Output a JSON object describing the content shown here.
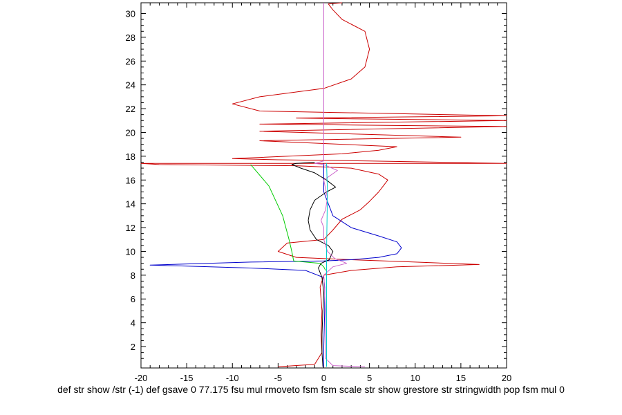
{
  "chart_data": {
    "type": "line",
    "title": "",
    "xlabel": "def str show /str (-1) def gsave 0 77.175 fsu mul rmoveto fsm fsm scale str show grestore str stringwidth pop fsm mul 0",
    "ylabel": "",
    "xlim": [
      -20,
      20
    ],
    "ylim": [
      0.2,
      30.9
    ],
    "xticks": [
      -20,
      -15,
      -10,
      -5,
      0,
      5,
      10,
      15,
      20
    ],
    "yticks": [
      2,
      4,
      6,
      8,
      10,
      12,
      14,
      16,
      18,
      20,
      22,
      24,
      26,
      28,
      30
    ],
    "grid": false,
    "legend": "none",
    "series": [
      {
        "name": "red",
        "color": "#cc0000",
        "points": [
          [
            -5,
            0.3
          ],
          [
            -1,
            0.5
          ],
          [
            -0.2,
            1.5
          ],
          [
            -0.3,
            3
          ],
          [
            -0.2,
            5
          ],
          [
            -0.4,
            7
          ],
          [
            0,
            8
          ],
          [
            3,
            8.4
          ],
          [
            8,
            8.7
          ],
          [
            17,
            8.9
          ],
          [
            10,
            9.1
          ],
          [
            3,
            9.3
          ],
          [
            -3,
            9.5
          ],
          [
            -5,
            10
          ],
          [
            -4,
            10.7
          ],
          [
            0,
            11
          ],
          [
            1,
            11.8
          ],
          [
            2,
            12.7
          ],
          [
            4,
            13.5
          ],
          [
            5,
            14.2
          ],
          [
            6,
            15
          ],
          [
            6.5,
            15.5
          ],
          [
            7,
            16
          ],
          [
            6,
            16.5
          ],
          [
            3,
            17
          ],
          [
            -3,
            17.2
          ],
          [
            -18,
            17.3
          ],
          [
            -20,
            17.4
          ],
          [
            0,
            17.4
          ],
          [
            20,
            17.4
          ],
          [
            5,
            17.6
          ],
          [
            -5,
            17.7
          ],
          [
            -10,
            17.8
          ],
          [
            2,
            18.2
          ],
          [
            6,
            18.5
          ],
          [
            8,
            18.8
          ],
          [
            -7,
            19.3
          ],
          [
            15,
            19.6
          ],
          [
            -7,
            20.1
          ],
          [
            20,
            20.5
          ],
          [
            -7,
            20.7
          ],
          [
            20,
            21
          ],
          [
            -3,
            21.2
          ],
          [
            20,
            21.4
          ],
          [
            -7,
            21.8
          ],
          [
            -10,
            22.4
          ],
          [
            -7,
            23
          ],
          [
            0,
            23.7
          ],
          [
            3,
            24.5
          ],
          [
            4.5,
            25.5
          ],
          [
            5,
            27
          ],
          [
            4.5,
            28.5
          ],
          [
            2,
            29.5
          ],
          [
            1,
            30.3
          ],
          [
            0.5,
            30.8
          ],
          [
            2,
            30.9
          ]
        ]
      },
      {
        "name": "blue",
        "color": "#0000cc",
        "points": [
          [
            0,
            0.3
          ],
          [
            0,
            2
          ],
          [
            0.1,
            5
          ],
          [
            0.1,
            7
          ],
          [
            0,
            7.8
          ],
          [
            -2,
            8.4
          ],
          [
            -8,
            8.6
          ],
          [
            -19,
            8.85
          ],
          [
            -8,
            9.1
          ],
          [
            0,
            9.2
          ],
          [
            3,
            9.3
          ],
          [
            6,
            9.5
          ],
          [
            8,
            9.8
          ],
          [
            8.5,
            10.3
          ],
          [
            8,
            10.8
          ],
          [
            6,
            11.3
          ],
          [
            3,
            12
          ],
          [
            1,
            13
          ],
          [
            0.5,
            14
          ],
          [
            0,
            15
          ],
          [
            0,
            16
          ],
          [
            0,
            17
          ],
          [
            0,
            17.4
          ]
        ]
      },
      {
        "name": "black",
        "color": "#000000",
        "points": [
          [
            -0.1,
            0.3
          ],
          [
            -0.2,
            1.5
          ],
          [
            -0.2,
            3
          ],
          [
            -0.1,
            5
          ],
          [
            0,
            6.5
          ],
          [
            -0.2,
            7.8
          ],
          [
            -0.6,
            8.6
          ],
          [
            -0.3,
            9
          ],
          [
            0.6,
            9.3
          ],
          [
            1,
            10
          ],
          [
            0.5,
            10.5
          ],
          [
            -0.8,
            11
          ],
          [
            -1.5,
            11.8
          ],
          [
            -1.7,
            12.6
          ],
          [
            -1.5,
            13.5
          ],
          [
            -1,
            14.3
          ],
          [
            0.3,
            15
          ],
          [
            1.3,
            15.4
          ],
          [
            0.3,
            16
          ],
          [
            -1,
            16.6
          ],
          [
            -2.5,
            17
          ],
          [
            -3.5,
            17.3
          ],
          [
            -3,
            17.4
          ],
          [
            -1,
            17.5
          ]
        ]
      },
      {
        "name": "green",
        "color": "#00cc00",
        "points": [
          [
            -8,
            17.3
          ],
          [
            -6,
            15.5
          ],
          [
            -4.5,
            13
          ],
          [
            -3.8,
            11
          ],
          [
            -3.5,
            10
          ],
          [
            -3.3,
            9.2
          ],
          [
            -2,
            9.1
          ],
          [
            -0.4,
            9
          ],
          [
            0,
            8.7
          ],
          [
            0.2,
            8.4
          ]
        ]
      },
      {
        "name": "violet",
        "color": "#cc66cc",
        "points": [
          [
            4.5,
            0.3
          ],
          [
            1,
            0.4
          ],
          [
            0.2,
            1
          ],
          [
            0.2,
            5
          ],
          [
            0,
            8
          ],
          [
            1,
            8.7
          ],
          [
            2.5,
            9
          ],
          [
            1.2,
            9.4
          ],
          [
            0.4,
            10
          ],
          [
            0,
            11
          ],
          [
            0,
            12
          ],
          [
            -0.3,
            12.6
          ],
          [
            0.2,
            13.5
          ],
          [
            0.4,
            14.5
          ],
          [
            0,
            16
          ],
          [
            1.5,
            16.8
          ],
          [
            0,
            17.3
          ],
          [
            -1,
            17.4
          ],
          [
            0,
            17.6
          ],
          [
            0,
            30.9
          ]
        ]
      },
      {
        "name": "cyan",
        "color": "#00cccc",
        "points": [
          [
            0.3,
            0.3
          ],
          [
            0.3,
            5
          ],
          [
            0.3,
            10
          ],
          [
            0.4,
            15
          ],
          [
            0.3,
            17.4
          ]
        ]
      }
    ]
  }
}
